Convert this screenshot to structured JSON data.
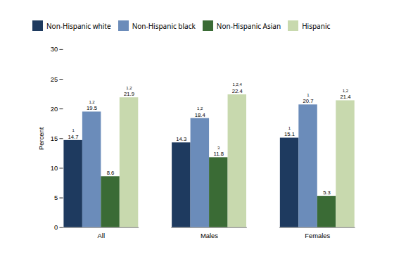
{
  "chart_data": {
    "type": "bar",
    "categories": [
      "All",
      "Males",
      "Females"
    ],
    "series": [
      {
        "name": "Non-Hispanic white",
        "color": "#1e3a5f",
        "values": [
          14.7,
          14.3,
          15.1
        ],
        "superscripts": [
          "1",
          null,
          "1"
        ]
      },
      {
        "name": "Non-Hispanic black",
        "color": "#6b8cba",
        "values": [
          19.5,
          18.4,
          20.7
        ],
        "superscripts": [
          "1,2",
          "1,2",
          "1"
        ]
      },
      {
        "name": "Non-Hispanic Asian",
        "color": "#3a6b35",
        "values": [
          8.6,
          11.8,
          5.3
        ],
        "superscripts": [
          null,
          "3",
          null
        ]
      },
      {
        "name": "Hispanic",
        "color": "#c8d9ae",
        "values": [
          21.9,
          22.4,
          21.4
        ],
        "superscripts": [
          "1,2",
          "1,2,4",
          "1,2"
        ]
      }
    ],
    "ylabel": "Percent",
    "ylim": [
      0,
      30
    ],
    "yticks": [
      0,
      5,
      10,
      15,
      20,
      25,
      30
    ],
    "legend": "upper left",
    "data_labels": true,
    "grid": false
  }
}
